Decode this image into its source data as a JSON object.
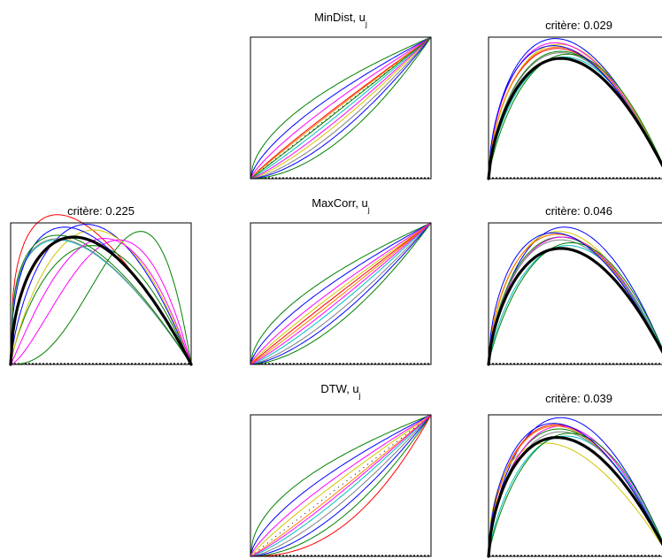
{
  "chart_data": [
    {
      "id": "original",
      "type": "line",
      "title": "critère: 0.225",
      "xlim": [
        0,
        1
      ],
      "ylim": [
        0,
        1
      ],
      "baseline_dashed": true,
      "mean_curve": {
        "shape": "bump",
        "peak_x": 0.35,
        "height": 0.9,
        "color": "#000000"
      },
      "series": [
        {
          "color": "#ff0000",
          "peak_x": 0.14,
          "height": 0.99
        },
        {
          "color": "#0000ff",
          "peak_x": 0.42,
          "height": 0.99
        },
        {
          "color": "#008000",
          "peak_x": 0.72,
          "height": 0.94
        },
        {
          "color": "#008000",
          "peak_x": 0.45,
          "height": 0.84
        },
        {
          "color": "#d4c600",
          "peak_x": 0.46,
          "height": 0.95
        },
        {
          "color": "#ff00ff",
          "peak_x": 0.6,
          "height": 0.88
        },
        {
          "color": "#00c0c0",
          "peak_x": 0.26,
          "height": 0.88
        },
        {
          "color": "#ff8000",
          "peak_x": 0.36,
          "height": 0.9
        },
        {
          "color": "#808080",
          "peak_x": 0.21,
          "height": 0.88
        },
        {
          "color": "#0000ff",
          "peak_x": 0.3,
          "height": 0.97
        },
        {
          "color": "#008000",
          "peak_x": 0.2,
          "height": 0.9
        },
        {
          "color": "#ff00ff",
          "peak_x": 0.52,
          "height": 0.89
        }
      ]
    },
    {
      "id": "mindist-warp",
      "type": "line",
      "title": "MinDist, u",
      "title_sub": "j",
      "xlim": [
        0,
        1
      ],
      "ylim": [
        0,
        1
      ],
      "baseline_dashed": true,
      "diagonal_dotted": true,
      "series": [
        {
          "color": "#008000",
          "exponent": 0.55
        },
        {
          "color": "#0000ff",
          "exponent": 0.68
        },
        {
          "color": "#ff00ff",
          "exponent": 0.8
        },
        {
          "color": "#ff0000",
          "exponent": 0.92
        },
        {
          "color": "#ff8000",
          "exponent": 0.95
        },
        {
          "color": "#00c0c0",
          "exponent": 1.1
        },
        {
          "color": "#d4c600",
          "exponent": 1.3
        },
        {
          "color": "#808080",
          "exponent": 1.45
        },
        {
          "color": "#0000ff",
          "exponent": 1.6
        },
        {
          "color": "#008000",
          "exponent": 1.85
        },
        {
          "color": "#ff00ff",
          "exponent": 1.2
        },
        {
          "color": "#008000",
          "exponent": 1.02
        }
      ]
    },
    {
      "id": "mindist-aligned",
      "type": "line",
      "title": "critère: 0.029",
      "xlim": [
        0,
        1
      ],
      "ylim": [
        0,
        1
      ],
      "baseline_dashed": true,
      "mean_curve": {
        "shape": "bump",
        "peak_x": 0.4,
        "height": 0.85,
        "color": "#000000"
      },
      "series": [
        {
          "color": "#0000ff",
          "peak_x": 0.37,
          "height": 0.99
        },
        {
          "color": "#ff0000",
          "peak_x": 0.38,
          "height": 0.92
        },
        {
          "color": "#008000",
          "peak_x": 0.4,
          "height": 0.9
        },
        {
          "color": "#d4c600",
          "peak_x": 0.39,
          "height": 0.95
        },
        {
          "color": "#ff00ff",
          "peak_x": 0.37,
          "height": 0.96
        },
        {
          "color": "#00c0c0",
          "peak_x": 0.42,
          "height": 0.86
        },
        {
          "color": "#ff8000",
          "peak_x": 0.38,
          "height": 0.93
        },
        {
          "color": "#808080",
          "peak_x": 0.4,
          "height": 0.89
        },
        {
          "color": "#008000",
          "peak_x": 0.44,
          "height": 0.88
        },
        {
          "color": "#0000ff",
          "peak_x": 0.36,
          "height": 0.94
        }
      ]
    },
    {
      "id": "maxcorr-warp",
      "type": "line",
      "title": "MaxCorr, u",
      "title_sub": "j",
      "xlim": [
        0,
        1
      ],
      "ylim": [
        0,
        1
      ],
      "baseline_dashed": true,
      "diagonal_dotted": false,
      "series": [
        {
          "color": "#008000",
          "exponent": 0.58
        },
        {
          "color": "#0000ff",
          "exponent": 0.7
        },
        {
          "color": "#ff00ff",
          "exponent": 0.82
        },
        {
          "color": "#d4c600",
          "exponent": 0.9
        },
        {
          "color": "#ff0000",
          "exponent": 0.97
        },
        {
          "color": "#ff8000",
          "exponent": 1.04
        },
        {
          "color": "#00c0c0",
          "exponent": 1.22
        },
        {
          "color": "#808080",
          "exponent": 1.38
        },
        {
          "color": "#0000ff",
          "exponent": 1.52
        },
        {
          "color": "#008000",
          "exponent": 1.72
        },
        {
          "color": "#ff00ff",
          "exponent": 1.12
        }
      ]
    },
    {
      "id": "maxcorr-aligned",
      "type": "line",
      "title": "critère: 0.046",
      "xlim": [
        0,
        1
      ],
      "ylim": [
        0,
        1
      ],
      "baseline_dashed": true,
      "mean_curve": {
        "shape": "bump",
        "peak_x": 0.4,
        "height": 0.82,
        "color": "#000000"
      },
      "series": [
        {
          "color": "#0000ff",
          "peak_x": 0.42,
          "height": 0.97
        },
        {
          "color": "#ff0000",
          "peak_x": 0.38,
          "height": 0.92
        },
        {
          "color": "#008000",
          "peak_x": 0.4,
          "height": 0.9
        },
        {
          "color": "#d4c600",
          "peak_x": 0.39,
          "height": 0.94
        },
        {
          "color": "#ff00ff",
          "peak_x": 0.41,
          "height": 0.9
        },
        {
          "color": "#00c0c0",
          "peak_x": 0.44,
          "height": 0.84
        },
        {
          "color": "#ff8000",
          "peak_x": 0.38,
          "height": 0.92
        },
        {
          "color": "#808080",
          "peak_x": 0.4,
          "height": 0.88
        },
        {
          "color": "#008000",
          "peak_x": 0.46,
          "height": 0.86
        },
        {
          "color": "#0000ff",
          "peak_x": 0.36,
          "height": 0.93
        }
      ]
    },
    {
      "id": "dtw-warp",
      "type": "line",
      "title": "DTW, u",
      "title_sub": "j",
      "xlim": [
        0,
        1
      ],
      "ylim": [
        0,
        1
      ],
      "baseline_dashed": true,
      "diagonal_dotted": true,
      "series": [
        {
          "color": "#008000",
          "exponent": 0.5
        },
        {
          "color": "#0000ff",
          "exponent": 0.65
        },
        {
          "color": "#ff00ff",
          "exponent": 0.78
        },
        {
          "color": "#d4c600",
          "exponent": 0.88
        },
        {
          "color": "#ff8000",
          "exponent": 1.08
        },
        {
          "color": "#00c0c0",
          "exponent": 1.25
        },
        {
          "color": "#808080",
          "exponent": 1.42
        },
        {
          "color": "#0000ff",
          "exponent": 1.62
        },
        {
          "color": "#008000",
          "exponent": 1.9
        },
        {
          "color": "#ff0000",
          "exponent": 2.3
        },
        {
          "color": "#ff00ff",
          "exponent": 1.15
        }
      ]
    },
    {
      "id": "dtw-aligned",
      "type": "line",
      "title": "critère: 0.039",
      "xlim": [
        0,
        1
      ],
      "ylim": [
        0,
        1
      ],
      "baseline_dashed": true,
      "mean_curve": {
        "shape": "bump",
        "peak_x": 0.38,
        "height": 0.84,
        "color": "#000000"
      },
      "series": [
        {
          "color": "#0000ff",
          "peak_x": 0.4,
          "height": 0.98
        },
        {
          "color": "#ff0000",
          "peak_x": 0.37,
          "height": 0.93
        },
        {
          "color": "#008000",
          "peak_x": 0.39,
          "height": 0.9
        },
        {
          "color": "#d4c600",
          "peak_x": 0.32,
          "height": 0.8
        },
        {
          "color": "#ff00ff",
          "peak_x": 0.4,
          "height": 0.92
        },
        {
          "color": "#00c0c0",
          "peak_x": 0.43,
          "height": 0.85
        },
        {
          "color": "#ff8000",
          "peak_x": 0.37,
          "height": 0.92
        },
        {
          "color": "#808080",
          "peak_x": 0.4,
          "height": 0.88
        },
        {
          "color": "#008000",
          "peak_x": 0.45,
          "height": 0.87
        },
        {
          "color": "#0000ff",
          "peak_x": 0.36,
          "height": 0.94
        }
      ]
    }
  ]
}
